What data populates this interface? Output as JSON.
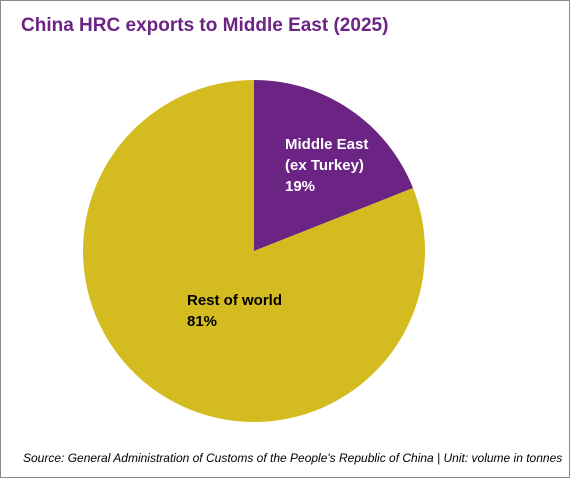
{
  "chart_data": {
    "type": "pie",
    "title": "China HRC exports to Middle East (2025)",
    "slices": [
      {
        "label_lines": [
          "Middle East",
          "(ex Turkey)",
          "19%"
        ],
        "label": "Middle East (ex Turkey)",
        "value": 19,
        "color": "#6b2483",
        "text_color": "#ffffff"
      },
      {
        "label_lines": [
          "Rest of world",
          "81%"
        ],
        "label": "Rest of world",
        "value": 81,
        "color": "#d4bc20",
        "text_color": "#000000"
      }
    ],
    "start": "12 o'clock, clockwise",
    "legend": "none",
    "source": "Source: General Administration of Customs of the People's Republic of China | Unit: volume in tonnes"
  }
}
